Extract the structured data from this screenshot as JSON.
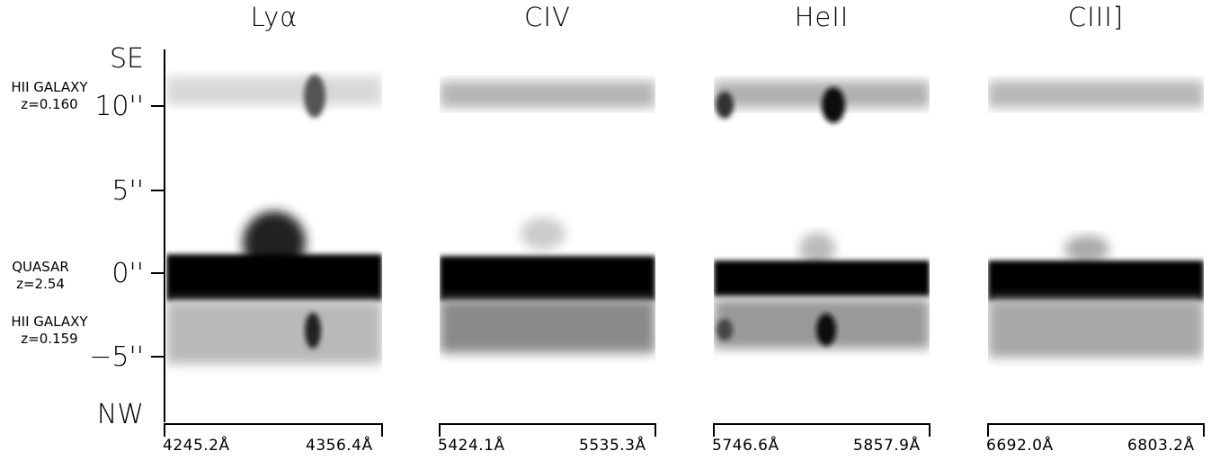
{
  "panels": [
    {
      "title": "Lyα",
      "wl_left": "4245.2Å",
      "wl_right": "4356.4Å"
    },
    {
      "title": "CIV",
      "wl_left": "5424.1Å",
      "wl_right": "5535.3Å"
    },
    {
      "title": "HeII",
      "wl_left": "5746.6Å",
      "wl_right": "5857.9Å"
    },
    {
      "title": "CIII]",
      "wl_left": "6692.0Å",
      "wl_right": "6803.2Å"
    }
  ],
  "axis": {
    "top_label": "SE",
    "bottom_label": "NW",
    "ticks": [
      "10''",
      "5''",
      "0''",
      "−5''"
    ]
  },
  "objects": [
    {
      "name": "HII GALAXY",
      "redshift": "z=0.160"
    },
    {
      "name": "QUASAR",
      "redshift": "z=2.54"
    },
    {
      "name": "HII GALAXY",
      "redshift": "z=0.159"
    }
  ]
}
